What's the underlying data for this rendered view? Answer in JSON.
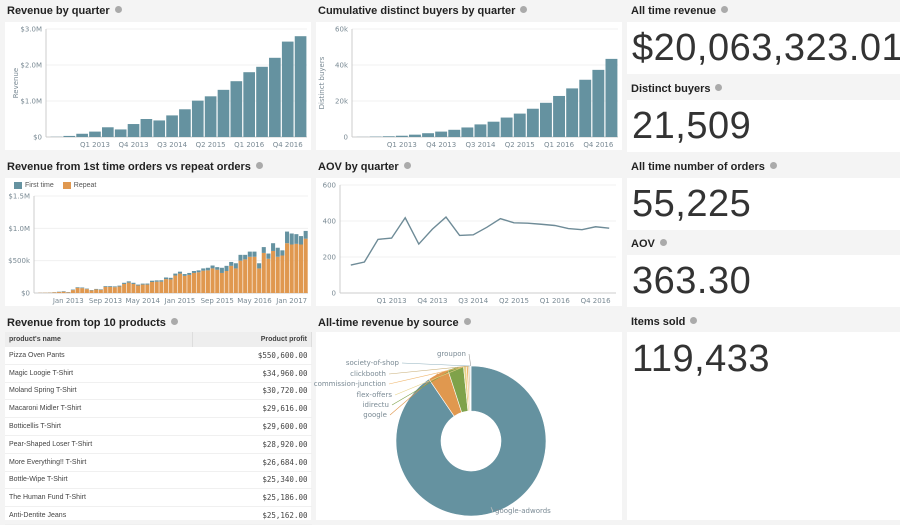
{
  "colors": {
    "primary": "#6592a0",
    "repeat": "#e0984f",
    "green": "#7fa24a",
    "line": "#6e8b97"
  },
  "revenue_by_quarter": {
    "title": "Revenue by quarter",
    "chart_data": {
      "type": "bar",
      "ylabel": "Revenue",
      "ylim": [
        0,
        3000000
      ],
      "yticks": [
        "$0",
        "$1.0M",
        "$2.0M",
        "$3.0M"
      ],
      "categories": [
        "Q2 2012",
        "Q3 2012",
        "Q4 2012",
        "Q1 2013",
        "Q2 2013",
        "Q3 2013",
        "Q4 2013",
        "Q1 2014",
        "Q2 2014",
        "Q3 2014",
        "Q4 2014",
        "Q1 2015",
        "Q2 2015",
        "Q3 2015",
        "Q4 2015",
        "Q1 2016",
        "Q2 2016",
        "Q3 2016",
        "Q4 2016",
        "Q1 2017"
      ],
      "xticks": [
        "Q1 2013",
        "Q4 2013",
        "Q3 2014",
        "Q2 2015",
        "Q1 2016",
        "Q4 2016"
      ],
      "values": [
        5000,
        30000,
        90000,
        150000,
        270000,
        210000,
        360000,
        500000,
        460000,
        600000,
        770000,
        1010000,
        1130000,
        1310000,
        1550000,
        1800000,
        1950000,
        2200000,
        2650000,
        2800000
      ]
    }
  },
  "buyers_by_quarter": {
    "title": "Cumulative distinct buyers by quarter",
    "chart_data": {
      "type": "bar",
      "ylabel": "Distinct buyers",
      "ylim": [
        0,
        60000
      ],
      "yticks": [
        "0",
        "20k",
        "40k",
        "60k"
      ],
      "categories": [
        "Q2 2012",
        "Q3 2012",
        "Q4 2012",
        "Q1 2013",
        "Q2 2013",
        "Q3 2013",
        "Q4 2013",
        "Q1 2014",
        "Q2 2014",
        "Q3 2014",
        "Q4 2014",
        "Q1 2015",
        "Q2 2015",
        "Q3 2015",
        "Q4 2015",
        "Q1 2016",
        "Q2 2016",
        "Q3 2016",
        "Q4 2016",
        "Q1 2017"
      ],
      "xticks": [
        "Q1 2013",
        "Q4 2013",
        "Q3 2014",
        "Q2 2015",
        "Q1 2016",
        "Q4 2016"
      ],
      "values": [
        50,
        200,
        400,
        700,
        1300,
        2100,
        3000,
        4000,
        5300,
        7000,
        8500,
        10800,
        13000,
        15700,
        19000,
        22800,
        27000,
        31800,
        37300,
        43400
      ]
    }
  },
  "first_vs_repeat": {
    "title": "Revenue from 1st time orders vs repeat orders",
    "chart_data": {
      "type": "bar",
      "stacked": true,
      "ylim": [
        0,
        1500000
      ],
      "yticks": [
        "$0",
        "$500k",
        "$1.0M",
        "$1.5M"
      ],
      "xticks": [
        "Jan 2013",
        "Sep 2013",
        "May 2014",
        "Jan 2015",
        "Sep 2015",
        "May 2016",
        "Jan 2017"
      ],
      "legend": "top-left",
      "series": [
        {
          "name": "Repeat",
          "values": [
            3000,
            4000,
            6000,
            10000,
            15000,
            20000,
            10000,
            45000,
            80000,
            75000,
            60000,
            40000,
            55000,
            50000,
            95000,
            95000,
            90000,
            100000,
            140000,
            160000,
            140000,
            115000,
            130000,
            130000,
            170000,
            175000,
            175000,
            215000,
            210000,
            270000,
            300000,
            265000,
            280000,
            310000,
            320000,
            345000,
            350000,
            380000,
            360000,
            310000,
            340000,
            420000,
            380000,
            500000,
            520000,
            560000,
            560000,
            380000,
            620000,
            530000,
            650000,
            560000,
            580000,
            770000,
            750000,
            760000,
            750000,
            840000
          ]
        },
        {
          "name": "First time",
          "values": [
            1000,
            1000,
            2000,
            3000,
            5000,
            8000,
            5000,
            8000,
            10000,
            10000,
            8000,
            6000,
            8000,
            8000,
            12000,
            12000,
            12000,
            14000,
            18000,
            20000,
            18000,
            15000,
            15000,
            16000,
            20000,
            20000,
            22000,
            25000,
            25000,
            30000,
            30000,
            28000,
            30000,
            30000,
            30000,
            35000,
            40000,
            45000,
            40000,
            80000,
            80000,
            60000,
            80000,
            90000,
            70000,
            80000,
            80000,
            80000,
            90000,
            80000,
            120000,
            140000,
            80000,
            180000,
            170000,
            150000,
            130000,
            120000
          ]
        }
      ]
    }
  },
  "aov_by_quarter": {
    "title": "AOV by quarter",
    "chart_data": {
      "type": "line",
      "ylim": [
        0,
        600
      ],
      "yticks": [
        "0",
        "200",
        "400",
        "600"
      ],
      "xticks": [
        "Q1 2013",
        "Q4 2013",
        "Q3 2014",
        "Q2 2015",
        "Q1 2016",
        "Q4 2016"
      ],
      "values": [
        155,
        172,
        298,
        305,
        418,
        272,
        355,
        422,
        320,
        323,
        365,
        413,
        390,
        388,
        382,
        375,
        358,
        352,
        368,
        360
      ]
    }
  },
  "top_products": {
    "title": "Revenue from top 10 products",
    "columns": [
      "product's name",
      "Product profit"
    ],
    "rows": [
      [
        "Pizza Oven Pants",
        "$550,600.00"
      ],
      [
        "Magic Loogie T-Shirt",
        "$34,960.00"
      ],
      [
        "Moland Spring T-Shirt",
        "$30,720.00"
      ],
      [
        "Macaroni Midler T-Shirt",
        "$29,616.00"
      ],
      [
        "Botticellis T-Shirt",
        "$29,600.00"
      ],
      [
        "Pear-Shaped Loser T-Shirt",
        "$28,920.00"
      ],
      [
        "More Everything!! T-Shirt",
        "$26,684.00"
      ],
      [
        "Bottle-Wipe T-Shirt",
        "$25,340.00"
      ],
      [
        "The Human Fund T-Shirt",
        "$25,186.00"
      ],
      [
        "Anti-Dentite Jeans",
        "$25,162.00"
      ]
    ]
  },
  "revenue_by_source": {
    "title": "All-time revenue by source",
    "chart_data": {
      "type": "pie",
      "donut": true,
      "labels": [
        "google-adwords",
        "google",
        "idirectu",
        "flex-offers",
        "commission-junction",
        "clickbooth",
        "society-of-shop",
        "groupon"
      ],
      "values": [
        90.5,
        4.5,
        3.4,
        0.6,
        0.4,
        0.3,
        0.2,
        0.1
      ],
      "colors": [
        "#6592a0",
        "#e0984f",
        "#7fa24a",
        "#e8d28a",
        "#f0b870",
        "#c9b07a",
        "#8fb0bc",
        "#9a9a9a"
      ]
    }
  },
  "kpis": [
    {
      "label": "All time revenue",
      "value": "$20,063,323.01"
    },
    {
      "label": "Distinct buyers",
      "value": "21,509"
    },
    {
      "label": "All time number of orders",
      "value": "55,225"
    },
    {
      "label": "AOV",
      "value": "363.30"
    },
    {
      "label": "Items sold",
      "value": "119,433"
    }
  ]
}
